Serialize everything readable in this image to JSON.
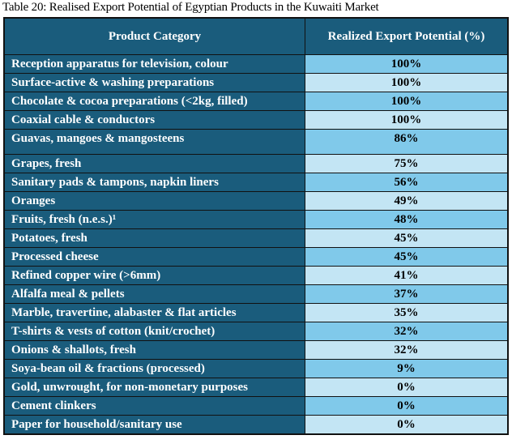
{
  "title": "Table 20: Realised Export Potential of Egyptian Products in the Kuwaiti Market",
  "headers": [
    "Product Category",
    "Realized Export Potential (%)"
  ],
  "rows": [
    {
      "category": "Reception apparatus for television, colour",
      "value": "100%"
    },
    {
      "category": "Surface-active & washing preparations",
      "value": "100%"
    },
    {
      "category": "Chocolate & cocoa preparations (<2kg, filled)",
      "value": "100%"
    },
    {
      "category": "Coaxial cable & conductors",
      "value": "100%"
    },
    {
      "category": "Guavas, mangoes & mangosteens",
      "value": "86%"
    },
    {
      "category": "Grapes, fresh",
      "value": "75%"
    },
    {
      "category": "Sanitary pads & tampons, napkin liners",
      "value": "56%"
    },
    {
      "category": "Oranges",
      "value": "49%"
    },
    {
      "category": "Fruits, fresh (n.e.s.)¹",
      "value": "48%"
    },
    {
      "category": "Potatoes, fresh",
      "value": "45%"
    },
    {
      "category": "Processed cheese",
      "value": "45%"
    },
    {
      "category": "Refined copper wire (>6mm)",
      "value": "41%"
    },
    {
      "category": "Alfalfa meal & pellets",
      "value": "37%"
    },
    {
      "category": "Marble, travertine, alabaster & flat articles",
      "value": "35%"
    },
    {
      "category": "T-shirts & vests of cotton (knit/crochet)",
      "value": "32%"
    },
    {
      "category": "Onions & shallots, fresh",
      "value": "32%"
    },
    {
      "category": "Soya-bean oil & fractions (processed)",
      "value": "9%"
    },
    {
      "category": "Gold, unwrought, for non-monetary purposes",
      "value": "0%"
    },
    {
      "category": "Cement clinkers",
      "value": "0%"
    },
    {
      "category": "Paper for household/sanitary use",
      "value": "0%"
    }
  ]
}
